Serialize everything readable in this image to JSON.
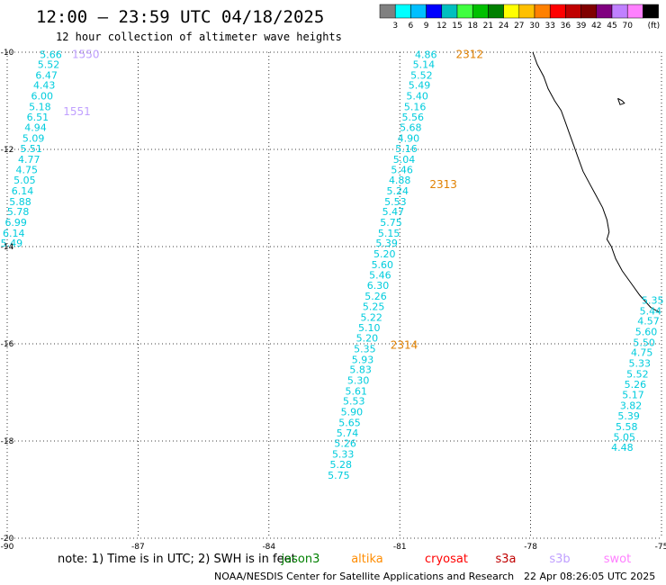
{
  "header": {
    "title": "12:00 – 23:59 UTC 04/18/2025",
    "subtitle": "12 hour collection of altimeter wave heights"
  },
  "legend": {
    "colors": [
      "#808080",
      "#00ffff",
      "#00bfff",
      "#0000ff",
      "#00bfbf",
      "#40ff40",
      "#00c000",
      "#008000",
      "#ffff00",
      "#ffc000",
      "#ff8000",
      "#ff0000",
      "#c00000",
      "#800000",
      "#800080",
      "#c080ff",
      "#ff80ff",
      "#000000"
    ],
    "labels": [
      "3",
      "6",
      "9",
      "12",
      "15",
      "18",
      "21",
      "24",
      "27",
      "30",
      "33",
      "36",
      "39",
      "42",
      "45",
      "70"
    ],
    "unit": "(ft)"
  },
  "map": {
    "lon_range": [
      -90,
      -75
    ],
    "lat_range": [
      -20,
      -10
    ],
    "x_ticks": [
      {
        "lon": -90,
        "label": "-90"
      },
      {
        "lon": -87,
        "label": "-87"
      },
      {
        "lon": -84,
        "label": "-84"
      },
      {
        "lon": -81,
        "label": "-81"
      },
      {
        "lon": -78,
        "label": "-78"
      },
      {
        "lon": -75,
        "label": "-75"
      }
    ],
    "y_ticks": [
      {
        "lat": -10,
        "label": "-10"
      },
      {
        "lat": -12,
        "label": "-12"
      },
      {
        "lat": -14,
        "label": "-14"
      },
      {
        "lat": -16,
        "label": "-16"
      },
      {
        "lat": -18,
        "label": "-18"
      },
      {
        "lat": -20,
        "label": "-20"
      }
    ],
    "height_color": "#00ccdd",
    "tracks": [
      {
        "heights": [
          {
            "lon": -89.0,
            "lat": -10.05,
            "v": "5.66"
          },
          {
            "lon": -89.05,
            "lat": -10.25,
            "v": "5.52"
          },
          {
            "lon": -89.1,
            "lat": -10.47,
            "v": "6.47"
          },
          {
            "lon": -89.15,
            "lat": -10.68,
            "v": "4.43"
          },
          {
            "lon": -89.2,
            "lat": -10.9,
            "v": "6.00"
          },
          {
            "lon": -89.25,
            "lat": -11.12,
            "v": "5.18"
          },
          {
            "lon": -89.3,
            "lat": -11.33,
            "v": "6.51"
          },
          {
            "lon": -89.35,
            "lat": -11.55,
            "v": "4.94"
          },
          {
            "lon": -89.4,
            "lat": -11.77,
            "v": "5.09"
          },
          {
            "lon": -89.45,
            "lat": -11.98,
            "v": "5.51"
          },
          {
            "lon": -89.5,
            "lat": -12.2,
            "v": "4.77"
          },
          {
            "lon": -89.55,
            "lat": -12.42,
            "v": "4.75"
          },
          {
            "lon": -89.6,
            "lat": -12.63,
            "v": "5.05"
          },
          {
            "lon": -89.65,
            "lat": -12.85,
            "v": "6.14"
          },
          {
            "lon": -89.7,
            "lat": -13.07,
            "v": "5.88"
          },
          {
            "lon": -89.75,
            "lat": -13.28,
            "v": "5.78"
          },
          {
            "lon": -89.8,
            "lat": -13.5,
            "v": "6.99"
          },
          {
            "lon": -89.85,
            "lat": -13.72,
            "v": "6.14"
          },
          {
            "lon": -89.9,
            "lat": -13.93,
            "v": "5.49"
          }
        ],
        "ids": [
          {
            "lon": -88.2,
            "lat": -10.05,
            "id": "1550",
            "color": "#c0a0ff"
          },
          {
            "lon": -88.4,
            "lat": -11.22,
            "id": "1551",
            "color": "#c0a0ff"
          }
        ]
      },
      {
        "heights": [
          {
            "lon": -80.4,
            "lat": -10.05,
            "v": "4.86"
          },
          {
            "lon": -80.45,
            "lat": -10.25,
            "v": "5.14"
          },
          {
            "lon": -80.5,
            "lat": -10.47,
            "v": "5.52"
          },
          {
            "lon": -80.55,
            "lat": -10.68,
            "v": "5.49"
          },
          {
            "lon": -80.6,
            "lat": -10.9,
            "v": "5.40"
          },
          {
            "lon": -80.65,
            "lat": -11.12,
            "v": "5.16"
          },
          {
            "lon": -80.7,
            "lat": -11.33,
            "v": "5.56"
          },
          {
            "lon": -80.75,
            "lat": -11.55,
            "v": "5.68"
          },
          {
            "lon": -80.8,
            "lat": -11.77,
            "v": "4.90"
          },
          {
            "lon": -80.85,
            "lat": -11.98,
            "v": "5.16"
          },
          {
            "lon": -80.9,
            "lat": -12.2,
            "v": "5.04"
          },
          {
            "lon": -80.95,
            "lat": -12.42,
            "v": "5.46"
          },
          {
            "lon": -81.0,
            "lat": -12.63,
            "v": "4.88"
          },
          {
            "lon": -81.05,
            "lat": -12.85,
            "v": "5.24"
          },
          {
            "lon": -81.1,
            "lat": -13.07,
            "v": "5.53"
          },
          {
            "lon": -81.15,
            "lat": -13.28,
            "v": "5.47"
          },
          {
            "lon": -81.2,
            "lat": -13.5,
            "v": "5.75"
          },
          {
            "lon": -81.25,
            "lat": -13.72,
            "v": "5.15"
          },
          {
            "lon": -81.3,
            "lat": -13.93,
            "v": "5.39"
          },
          {
            "lon": -81.35,
            "lat": -14.15,
            "v": "5.20"
          },
          {
            "lon": -81.4,
            "lat": -14.37,
            "v": "5.60"
          },
          {
            "lon": -81.45,
            "lat": -14.58,
            "v": "5.46"
          },
          {
            "lon": -81.5,
            "lat": -14.8,
            "v": "6.30"
          },
          {
            "lon": -81.55,
            "lat": -15.02,
            "v": "5.26"
          },
          {
            "lon": -81.6,
            "lat": -15.23,
            "v": "5.25"
          },
          {
            "lon": -81.65,
            "lat": -15.45,
            "v": "5.22"
          },
          {
            "lon": -81.7,
            "lat": -15.67,
            "v": "5.10"
          },
          {
            "lon": -81.75,
            "lat": -15.88,
            "v": "5.20"
          },
          {
            "lon": -81.8,
            "lat": -16.1,
            "v": "5.35"
          },
          {
            "lon": -81.85,
            "lat": -16.32,
            "v": "5.93"
          },
          {
            "lon": -81.9,
            "lat": -16.53,
            "v": "5.83"
          },
          {
            "lon": -81.95,
            "lat": -16.75,
            "v": "5.30"
          },
          {
            "lon": -82.0,
            "lat": -16.97,
            "v": "5.61"
          },
          {
            "lon": -82.05,
            "lat": -17.18,
            "v": "5.53"
          },
          {
            "lon": -82.1,
            "lat": -17.4,
            "v": "5.90"
          },
          {
            "lon": -82.15,
            "lat": -17.62,
            "v": "5.65"
          },
          {
            "lon": -82.2,
            "lat": -17.83,
            "v": "5.74"
          },
          {
            "lon": -82.25,
            "lat": -18.05,
            "v": "5.26"
          },
          {
            "lon": -82.3,
            "lat": -18.27,
            "v": "5.33"
          },
          {
            "lon": -82.35,
            "lat": -18.48,
            "v": "5.28"
          },
          {
            "lon": -82.4,
            "lat": -18.7,
            "v": "5.75"
          }
        ],
        "ids": [
          {
            "lon": -79.4,
            "lat": -10.05,
            "id": "2312",
            "color": "#e08000"
          },
          {
            "lon": -80.0,
            "lat": -12.72,
            "id": "2313",
            "color": "#e08000"
          },
          {
            "lon": -80.9,
            "lat": -16.03,
            "id": "2314",
            "color": "#e08000"
          }
        ]
      },
      {
        "heights": [
          {
            "lon": -75.2,
            "lat": -15.1,
            "v": "5.35"
          },
          {
            "lon": -75.25,
            "lat": -15.32,
            "v": "5.44"
          },
          {
            "lon": -75.3,
            "lat": -15.53,
            "v": "4.57"
          },
          {
            "lon": -75.35,
            "lat": -15.75,
            "v": "5.60"
          },
          {
            "lon": -75.4,
            "lat": -15.97,
            "v": "5.50"
          },
          {
            "lon": -75.45,
            "lat": -16.18,
            "v": "4.75"
          },
          {
            "lon": -75.5,
            "lat": -16.4,
            "v": "5.33"
          },
          {
            "lon": -75.55,
            "lat": -16.62,
            "v": "5.52"
          },
          {
            "lon": -75.6,
            "lat": -16.83,
            "v": "5.26"
          },
          {
            "lon": -75.65,
            "lat": -17.05,
            "v": "5.17"
          },
          {
            "lon": -75.7,
            "lat": -17.27,
            "v": "3.82"
          },
          {
            "lon": -75.75,
            "lat": -17.48,
            "v": "5.39"
          },
          {
            "lon": -75.8,
            "lat": -17.7,
            "v": "5.58"
          },
          {
            "lon": -75.85,
            "lat": -17.92,
            "v": "5.05"
          },
          {
            "lon": -75.9,
            "lat": -18.13,
            "v": "4.48"
          }
        ],
        "ids": []
      }
    ],
    "coastline": [
      [
        -77.95,
        -10.0
      ],
      [
        -77.85,
        -10.25
      ],
      [
        -77.7,
        -10.5
      ],
      [
        -77.6,
        -10.75
      ],
      [
        -77.45,
        -11.0
      ],
      [
        -77.3,
        -11.2
      ],
      [
        -77.2,
        -11.45
      ],
      [
        -77.1,
        -11.7
      ],
      [
        -77.0,
        -11.95
      ],
      [
        -76.9,
        -12.2
      ],
      [
        -76.8,
        -12.45
      ],
      [
        -76.65,
        -12.7
      ],
      [
        -76.5,
        -12.95
      ],
      [
        -76.35,
        -13.2
      ],
      [
        -76.25,
        -13.45
      ],
      [
        -76.2,
        -13.7
      ],
      [
        -76.25,
        -13.85
      ],
      [
        -76.15,
        -14.0
      ],
      [
        -76.05,
        -14.25
      ],
      [
        -75.9,
        -14.5
      ],
      [
        -75.7,
        -14.75
      ],
      [
        -75.5,
        -15.0
      ],
      [
        -75.25,
        -15.25
      ],
      [
        -75.05,
        -15.35
      ]
    ],
    "island": [
      [
        -76.0,
        -10.95
      ],
      [
        -75.9,
        -11.0
      ],
      [
        -75.85,
        -11.05
      ],
      [
        -75.95,
        -11.08
      ],
      [
        -76.0,
        -10.95
      ]
    ]
  },
  "footer": {
    "note": "note: 1) Time is in UTC; 2) SWH is in feet",
    "satellites": [
      {
        "name": "jason3",
        "color": "#008000"
      },
      {
        "name": "altika",
        "color": "#ff8c00"
      },
      {
        "name": "cryosat",
        "color": "#ff0000"
      },
      {
        "name": "s3a",
        "color": "#c00000"
      },
      {
        "name": "s3b",
        "color": "#c0a0ff"
      },
      {
        "name": "swot",
        "color": "#ff80ff"
      }
    ],
    "credit": "NOAA/NESDIS Center for Satellite Applications and Research",
    "timestamp": "22 Apr 08:26:05 UTC 2025"
  }
}
